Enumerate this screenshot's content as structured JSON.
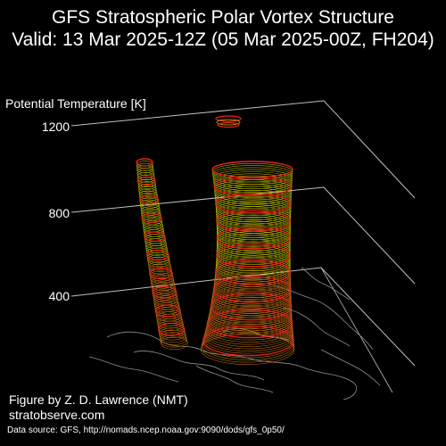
{
  "title_line1": "GFS Stratospheric Polar Vortex Structure",
  "title_line2": "Valid: 13 Mar 2025-12Z  (05 Mar 2025-00Z, FH204)",
  "axis": {
    "label": "Potential Temperature [K]",
    "ticks": [
      "1200",
      "800",
      "400"
    ]
  },
  "credits": {
    "author": "Figure by Z. D. Lawrence (NMT)",
    "site": "stratobserve.com",
    "source": "Data source: GFS, http://nomads.ncep.noaa.gov:9090/dods/gfs_0p50/"
  },
  "colors": {
    "background": "#000000",
    "contour_red": "#e8241c",
    "contour_yellow": "#c8c800",
    "contour_orange": "#d07a10",
    "grid": "#bfbfbf",
    "coastline": "#9a9a9a"
  }
}
